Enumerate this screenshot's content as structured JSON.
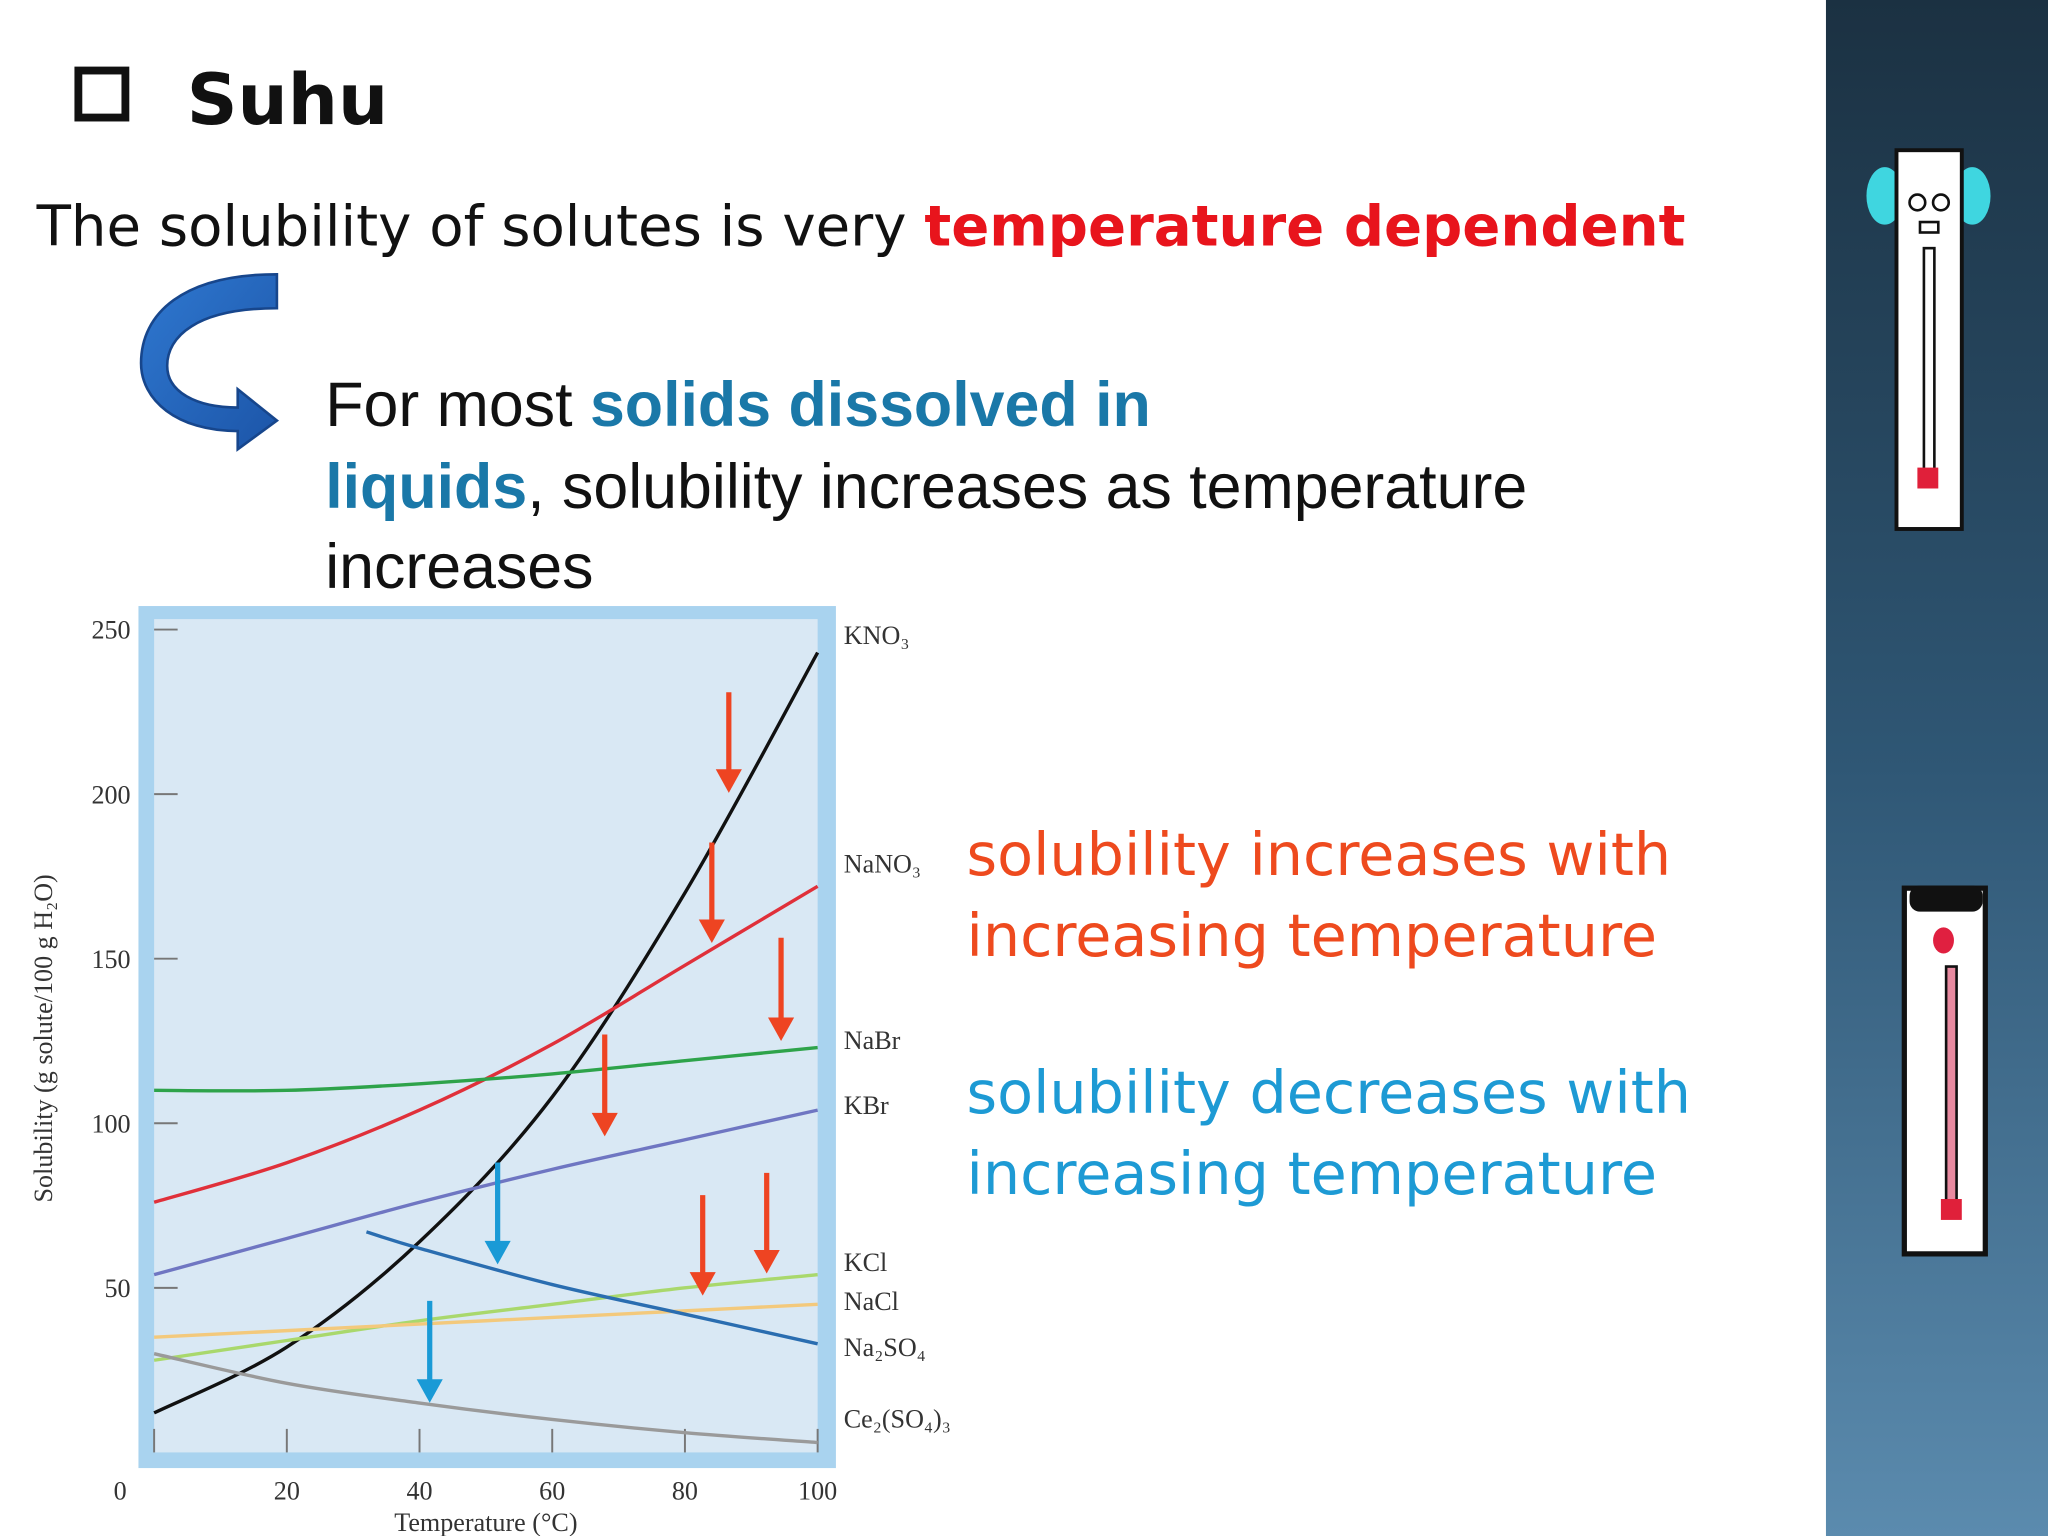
{
  "slide": {
    "title": "Suhu",
    "intro": [
      "The solubility of solutes is very ",
      "temperature dependent"
    ],
    "detail": {
      "lines": [
        [
          "For most ",
          "solids dissolved in"
        ],
        [
          "liquids",
          ", solubility increases as temperature"
        ],
        [
          "increases"
        ]
      ]
    },
    "notes": [
      {
        "lines": [
          "solubility increases with",
          "increasing temperature"
        ]
      },
      {
        "lines": [
          "solubility decreases with",
          "increasing temperature"
        ]
      }
    ]
  },
  "chart_data": {
    "type": "line",
    "x_label": "Temperature (°C)",
    "y_label": "Solubility (g solute/100 g H₂O)",
    "xlim": [
      0,
      100
    ],
    "ylim": [
      0,
      250
    ],
    "xticks": [
      0,
      20,
      40,
      60,
      80,
      100
    ],
    "yticks": [
      50,
      100,
      150,
      200,
      250
    ],
    "grid": false,
    "series": [
      {
        "name": "KNO₃",
        "color": "#111111",
        "x": [
          0,
          20,
          40,
          60,
          80,
          100
        ],
        "values": [
          12,
          32,
          64,
          108,
          170,
          243
        ]
      },
      {
        "name": "NaNO₃",
        "color": "#e0303a",
        "x": [
          0,
          20,
          40,
          60,
          80,
          100
        ],
        "values": [
          76,
          88,
          104,
          124,
          148,
          172
        ]
      },
      {
        "name": "NaBr",
        "color": "#2ea34a",
        "x": [
          0,
          20,
          40,
          60,
          80,
          100
        ],
        "values": [
          110,
          110,
          112,
          115,
          119,
          123
        ]
      },
      {
        "name": "KBr",
        "color": "#6f76c2",
        "x": [
          0,
          20,
          40,
          60,
          80,
          100
        ],
        "values": [
          54,
          65,
          76,
          86,
          95,
          104
        ]
      },
      {
        "name": "KCl",
        "color": "#a9d86c",
        "x": [
          0,
          20,
          40,
          60,
          80,
          100
        ],
        "values": [
          28,
          34,
          40,
          45,
          50,
          54
        ]
      },
      {
        "name": "NaCl",
        "color": "#f3c97c",
        "x": [
          0,
          20,
          40,
          60,
          80,
          100
        ],
        "values": [
          35,
          37,
          39,
          41,
          43,
          45
        ]
      },
      {
        "name": "Na₂SO₄",
        "color": "#2a6db0",
        "x": [
          32,
          40,
          60,
          80,
          100
        ],
        "values": [
          67,
          62,
          51,
          42,
          33
        ]
      },
      {
        "name": "Ce₂(SO₄)₃",
        "color": "#9a9a9a",
        "x": [
          0,
          20,
          40,
          60,
          80,
          100
        ],
        "values": [
          30,
          21,
          15,
          10,
          6,
          3
        ]
      }
    ]
  }
}
